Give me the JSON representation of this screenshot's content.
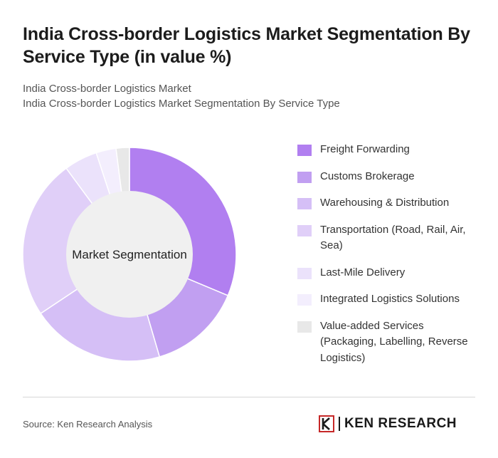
{
  "header": {
    "title": "India Cross-border Logistics Market Segmentation By Service Type (in value %)",
    "subtitle_line1": "India Cross-border Logistics Market",
    "subtitle_line2": "India Cross-border Logistics Market Segmentation By Service Type"
  },
  "chart_data": {
    "type": "pie",
    "variant": "donut",
    "center_label": "Market Segmentation",
    "categories": [
      "Freight Forwarding",
      "Customs Brokerage",
      "Warehousing & Distribution",
      "Transportation (Road, Rail, Air, Sea)",
      "Last-Mile Delivery",
      "Integrated Logistics Solutions",
      "Value-added Services (Packaging, Labelling, Reverse Logistics)"
    ],
    "values": [
      31,
      14,
      20,
      24,
      5,
      3,
      2
    ],
    "colors": [
      "#b17ff0",
      "#c19ff1",
      "#d5bff6",
      "#e0cff8",
      "#ebe2fb",
      "#f3eefd",
      "#e8e8e8"
    ],
    "legend_position": "right"
  },
  "footer": {
    "source": "Source: Ken Research Analysis",
    "logo_text": "KEN RESEARCH"
  }
}
